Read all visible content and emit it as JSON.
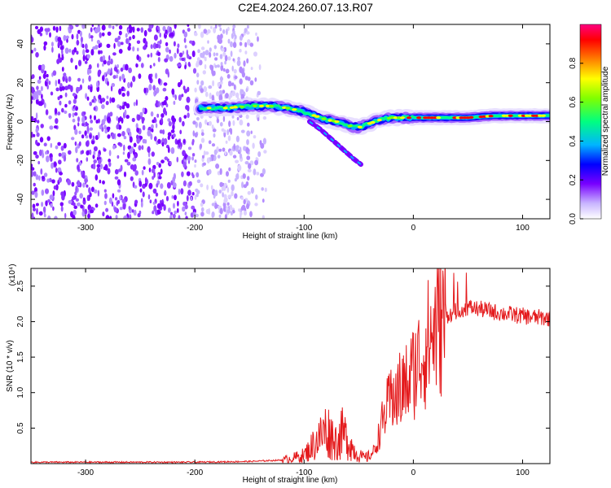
{
  "title": "C2E4.2024.260.07.13.R07",
  "chart_data": [
    {
      "type": "heatmap",
      "xlabel": "Height of straight line (km)",
      "ylabel": "Frequency (Hz)",
      "xlim": [
        -350,
        125
      ],
      "ylim": [
        -50,
        50
      ],
      "xticks": [
        -300,
        -200,
        -100,
        0,
        100
      ],
      "yticks": [
        -40,
        -20,
        0,
        20,
        40
      ],
      "signal_track": {
        "x": [
          -195,
          -170,
          -150,
          -130,
          -115,
          -100,
          -90,
          -80,
          -70,
          -60,
          -50,
          -40,
          -30,
          -20,
          -10,
          0,
          25,
          50,
          75,
          100,
          125
        ],
        "frequency": [
          7,
          7,
          8,
          8,
          7,
          5,
          3,
          1,
          0,
          -2,
          -3,
          -1,
          1,
          2,
          2,
          2,
          2,
          2,
          3,
          3,
          3
        ]
      },
      "colorbar": {
        "label": "Normalized spectral amplitude",
        "range": [
          0.0,
          1.0
        ],
        "ticks": [
          "0.0",
          "0.2",
          "0.4",
          "0.6",
          "0.8"
        ],
        "colors": [
          "#ffffff",
          "#c8b4ff",
          "#7800ff",
          "#0000ff",
          "#00b4ff",
          "#00ff80",
          "#80ff00",
          "#ffff00",
          "#ff8000",
          "#ff0000",
          "#ff0080"
        ]
      }
    },
    {
      "type": "line",
      "xlabel": "Height of straight line (km)",
      "ylabel": "SNR (10 * v/v)",
      "y_multiplier": "(x10⁴)",
      "xlim": [
        -350,
        125
      ],
      "ylim": [
        0,
        2.75
      ],
      "xticks": [
        -300,
        -200,
        -100,
        0,
        100
      ],
      "yticks": [
        0.5,
        1.0,
        1.5,
        2.0,
        2.5
      ],
      "color": "#e41a1c",
      "series": [
        {
          "name": "SNR",
          "x": [
            -350,
            -200,
            -150,
            -120,
            -110,
            -100,
            -95,
            -90,
            -85,
            -80,
            -75,
            -70,
            -65,
            -60,
            -55,
            -50,
            -45,
            -40,
            -35,
            -30,
            -25,
            -20,
            -15,
            -10,
            -5,
            0,
            5,
            10,
            15,
            20,
            25,
            30,
            35,
            40,
            45,
            50,
            60,
            70,
            80,
            90,
            100,
            110,
            125
          ],
          "y": [
            0.02,
            0.02,
            0.03,
            0.05,
            0.08,
            0.12,
            0.2,
            0.3,
            0.38,
            0.48,
            0.4,
            0.3,
            0.42,
            0.35,
            0.2,
            0.12,
            0.08,
            0.1,
            0.2,
            0.5,
            0.75,
            0.9,
            1.0,
            1.05,
            1.15,
            1.3,
            1.45,
            1.6,
            1.75,
            1.9,
            2.0,
            2.08,
            2.12,
            2.15,
            2.18,
            2.2,
            2.18,
            2.15,
            2.12,
            2.1,
            2.08,
            2.06,
            2.05
          ]
        }
      ]
    }
  ]
}
